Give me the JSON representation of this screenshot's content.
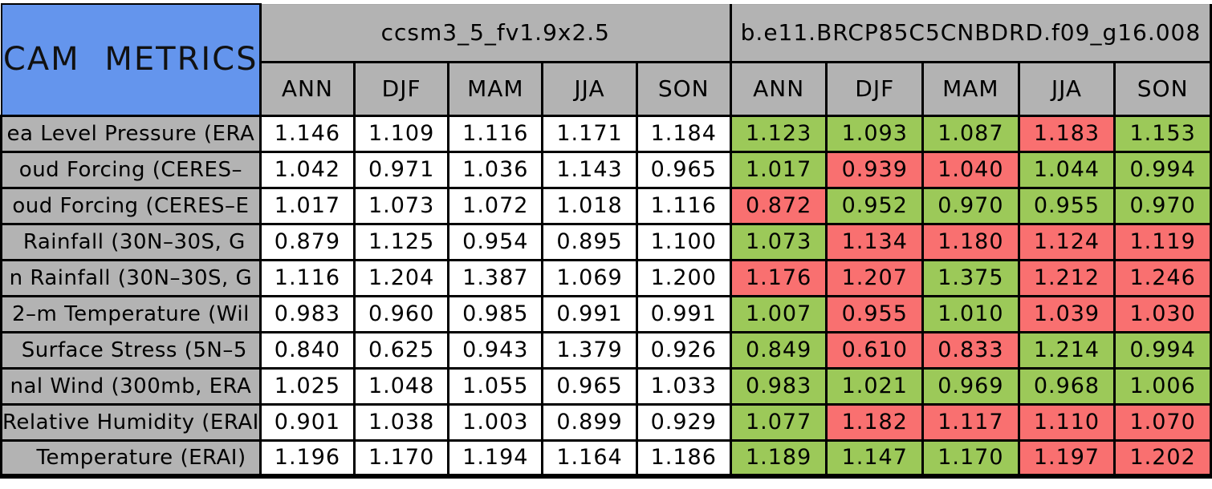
{
  "title": "CAM METRICS",
  "model1": {
    "name": "ccsm3_5_fv1.9x2.5"
  },
  "model2": {
    "name": "b.e11.BRCP85C5CNBDRD.f09_g16.008"
  },
  "seasons": [
    "ANN",
    "DJF",
    "MAM",
    "JJA",
    "SON"
  ],
  "colors": {
    "title_bg": "#6495ed",
    "header_bg": "#b3b3b3",
    "label_bg": "#b3b3b3",
    "model1_cell_bg": "#ffffff",
    "better_green": "#9cc959",
    "worse_red": "#f97070",
    "border": "#000000"
  },
  "chart_data": {
    "type": "table",
    "title": "CAM METRICS",
    "column_groups": [
      {
        "name": "ccsm3_5_fv1.9x2.5",
        "columns": [
          "ANN",
          "DJF",
          "MAM",
          "JJA",
          "SON"
        ]
      },
      {
        "name": "b.e11.BRCP85C5CNBDRD.f09_g16.008",
        "columns": [
          "ANN",
          "DJF",
          "MAM",
          "JJA",
          "SON"
        ]
      }
    ],
    "rows": [
      {
        "label": "ea Level Pressure (ERA",
        "model1": [
          "1.146",
          "1.109",
          "1.116",
          "1.171",
          "1.184"
        ],
        "model2": [
          "1.123",
          "1.093",
          "1.087",
          "1.183",
          "1.153"
        ],
        "model2_colors": [
          "green",
          "green",
          "green",
          "red",
          "green"
        ]
      },
      {
        "label": "oud Forcing (CERES–",
        "model1": [
          "1.042",
          "0.971",
          "1.036",
          "1.143",
          "0.965"
        ],
        "model2": [
          "1.017",
          "0.939",
          "1.040",
          "1.044",
          "0.994"
        ],
        "model2_colors": [
          "green",
          "red",
          "red",
          "green",
          "green"
        ]
      },
      {
        "label": "oud Forcing (CERES–E",
        "model1": [
          "1.017",
          "1.073",
          "1.072",
          "1.018",
          "1.116"
        ],
        "model2": [
          "0.872",
          "0.952",
          "0.970",
          "0.955",
          "0.970"
        ],
        "model2_colors": [
          "red",
          "green",
          "green",
          "green",
          "green"
        ]
      },
      {
        "label": " Rainfall (30N–30S, G",
        "model1": [
          "0.879",
          "1.125",
          "0.954",
          "0.895",
          "1.100"
        ],
        "model2": [
          "1.073",
          "1.134",
          "1.180",
          "1.124",
          "1.119"
        ],
        "model2_colors": [
          "green",
          "red",
          "red",
          "red",
          "red"
        ]
      },
      {
        "label": "n Rainfall (30N–30S, G",
        "model1": [
          "1.116",
          "1.204",
          "1.387",
          "1.069",
          "1.200"
        ],
        "model2": [
          "1.176",
          "1.207",
          "1.375",
          "1.212",
          "1.246"
        ],
        "model2_colors": [
          "red",
          "red",
          "green",
          "red",
          "red"
        ]
      },
      {
        "label": "2–m Temperature (Wil",
        "model1": [
          "0.983",
          "0.960",
          "0.985",
          "0.991",
          "0.991"
        ],
        "model2": [
          "1.007",
          "0.955",
          "1.010",
          "1.039",
          "1.030"
        ],
        "model2_colors": [
          "green",
          "red",
          "green",
          "red",
          "red"
        ]
      },
      {
        "label": " Surface Stress (5N–5",
        "model1": [
          "0.840",
          "0.625",
          "0.943",
          "1.379",
          "0.926"
        ],
        "model2": [
          "0.849",
          "0.610",
          "0.833",
          "1.214",
          "0.994"
        ],
        "model2_colors": [
          "green",
          "red",
          "red",
          "green",
          "green"
        ]
      },
      {
        "label": "nal Wind (300mb, ERA",
        "model1": [
          "1.025",
          "1.048",
          "1.055",
          "0.965",
          "1.033"
        ],
        "model2": [
          "0.983",
          "1.021",
          "0.969",
          "0.968",
          "1.006"
        ],
        "model2_colors": [
          "green",
          "green",
          "green",
          "green",
          "green"
        ]
      },
      {
        "label": "Relative Humidity (ERAI",
        "model1": [
          "0.901",
          "1.038",
          "1.003",
          "0.899",
          "0.929"
        ],
        "model2": [
          "1.077",
          "1.182",
          "1.117",
          "1.110",
          "1.070"
        ],
        "model2_colors": [
          "green",
          "red",
          "red",
          "red",
          "red"
        ]
      },
      {
        "label": "   Temperature (ERAI)",
        "model1": [
          "1.196",
          "1.170",
          "1.194",
          "1.164",
          "1.186"
        ],
        "model2": [
          "1.189",
          "1.147",
          "1.170",
          "1.197",
          "1.202"
        ],
        "model2_colors": [
          "green",
          "green",
          "green",
          "red",
          "red"
        ]
      }
    ]
  }
}
